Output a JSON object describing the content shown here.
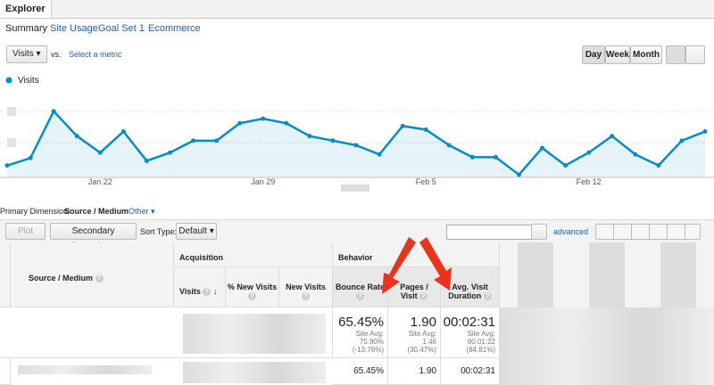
{
  "tabs": {
    "title": "Explorer",
    "items": [
      "Summary",
      "Site Usage",
      "Goal Set 1",
      "Ecommerce"
    ]
  },
  "controls": {
    "metric": "Visits",
    "vs": "vs.",
    "select_metric": "Select a metric",
    "periods": [
      "Day",
      "Week",
      "Month"
    ]
  },
  "chart_data": {
    "type": "line",
    "categories": [
      null,
      null,
      null,
      null,
      "Jan 22",
      null,
      null,
      null,
      null,
      null,
      null,
      "Jan 29",
      null,
      null,
      null,
      null,
      null,
      null,
      "Feb 5",
      null,
      null,
      null,
      null,
      null,
      null,
      "Feb 12",
      null,
      null,
      null,
      null,
      null
    ],
    "series": [
      {
        "name": "Visits",
        "color": "#058dc7",
        "values": [
          12,
          20,
          71,
          44,
          26,
          49,
          17,
          26,
          39,
          39,
          58,
          63,
          58,
          44,
          39,
          34,
          24,
          55,
          51,
          34,
          21,
          21,
          2,
          31,
          12,
          26,
          44,
          24,
          12,
          39,
          49
        ]
      }
    ],
    "ylim": [
      0,
      100
    ]
  },
  "dimension": {
    "label": "Primary Dimension:",
    "value": "Source / Medium",
    "other": "Other"
  },
  "toolbar": {
    "plot_rows": "Plot Rows",
    "secondary": "Secondary dimension",
    "sort_type": "Sort Type:",
    "sort_value": "Default",
    "advanced": "advanced"
  },
  "table": {
    "groups": [
      "Acquisition",
      "Behavior"
    ],
    "columns": [
      "Source / Medium",
      "Visits",
      "% New Visits",
      "New Visits",
      "Bounce Rate",
      "Pages / Visit",
      "Avg. Visit Duration"
    ],
    "totals": [
      {
        "value": "65.45%",
        "site_avg": "Site Avg:",
        "avg": "75.90%",
        "diff": "(-13.76%)"
      },
      {
        "value": "1.90",
        "site_avg": "Site Avg:",
        "avg": "1.46",
        "diff": "(30.47%)"
      },
      {
        "value": "00:02:31",
        "site_avg": "Site Avg:",
        "avg": "00:01:22",
        "diff": "(84.81%)"
      }
    ],
    "rows": [
      [
        "65.45%",
        "1.90",
        "00:02:31"
      ]
    ]
  }
}
